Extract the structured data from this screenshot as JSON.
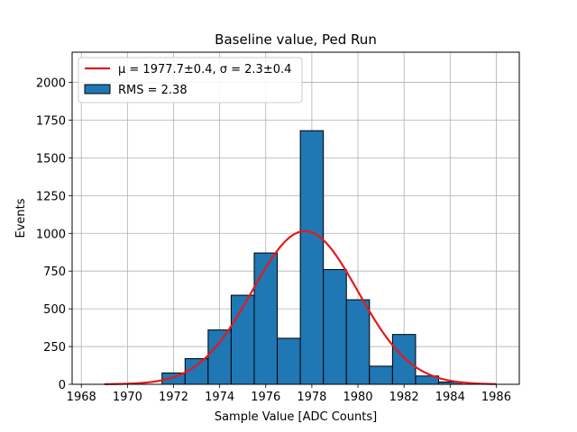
{
  "chart_data": {
    "type": "bar",
    "title": "Baseline value, Ped Run",
    "xlabel": "Sample Value [ADC Counts]",
    "ylabel": "Events",
    "xlim": [
      1967.6,
      1987.0
    ],
    "ylim": [
      0,
      2200
    ],
    "xticks": [
      1968,
      1970,
      1972,
      1974,
      1976,
      1978,
      1980,
      1982,
      1984,
      1986
    ],
    "yticks": [
      0,
      250,
      500,
      750,
      1000,
      1250,
      1500,
      1750,
      2000
    ],
    "grid": true,
    "legend_placement": "top-left",
    "bins": [
      {
        "x0": 1971.5,
        "x1": 1972.5,
        "value": 75
      },
      {
        "x0": 1972.5,
        "x1": 1973.5,
        "value": 170
      },
      {
        "x0": 1973.5,
        "x1": 1974.5,
        "value": 360
      },
      {
        "x0": 1974.5,
        "x1": 1975.5,
        "value": 590
      },
      {
        "x0": 1975.5,
        "x1": 1976.5,
        "value": 870
      },
      {
        "x0": 1976.5,
        "x1": 1977.5,
        "value": 305
      },
      {
        "x0": 1977.5,
        "x1": 1978.5,
        "value": 1680
      },
      {
        "x0": 1978.5,
        "x1": 1979.5,
        "value": 760
      },
      {
        "x0": 1979.5,
        "x1": 1980.5,
        "value": 560
      },
      {
        "x0": 1980.5,
        "x1": 1981.5,
        "value": 120
      },
      {
        "x0": 1981.5,
        "x1": 1982.5,
        "value": 330
      },
      {
        "x0": 1982.5,
        "x1": 1983.5,
        "value": 55
      },
      {
        "x0": 1983.5,
        "x1": 1984.5,
        "value": 15
      }
    ],
    "fit": {
      "mu": 1977.7,
      "sigma": 2.3,
      "amplitude": 1015,
      "x_range": [
        1969,
        1986
      ]
    },
    "series": [
      {
        "name": "μ = 1977.7±0.4, σ = 2.3±0.4",
        "kind": "line",
        "color": "#e31a1c"
      },
      {
        "name": "RMS = 2.38",
        "kind": "bar",
        "color": "#1f77b4"
      }
    ],
    "colors": {
      "bar_fill": "#1f77b4",
      "bar_edge": "#000000",
      "fit_line": "#e31a1c",
      "grid": "#b0b0b0"
    }
  }
}
